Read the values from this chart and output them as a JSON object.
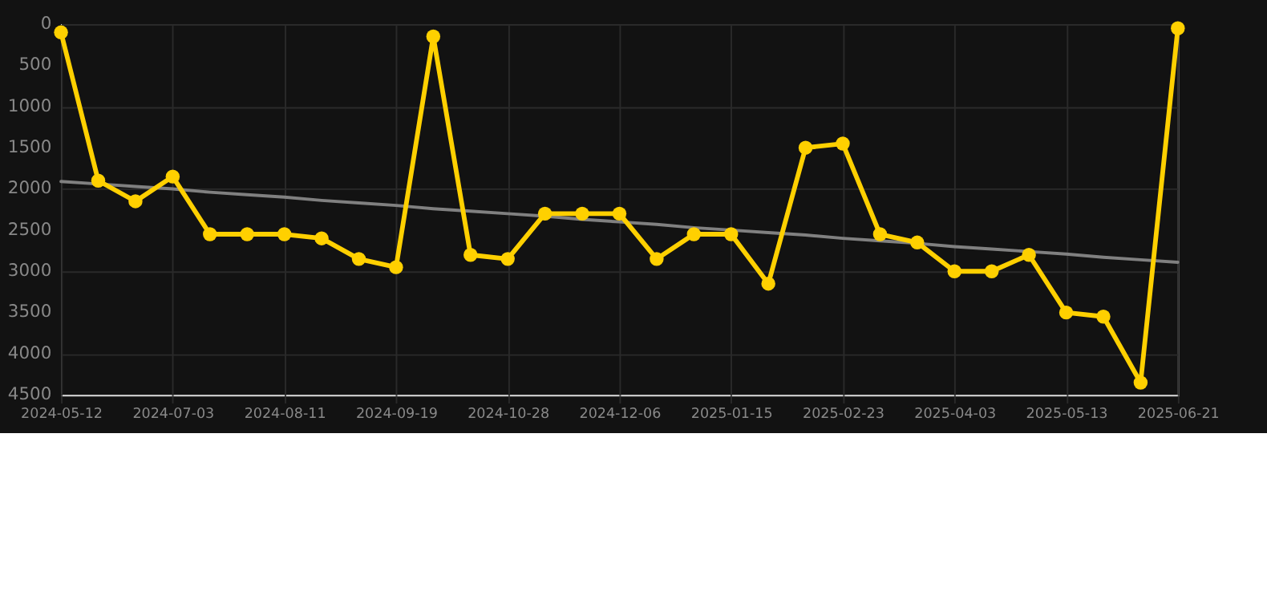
{
  "chart_data": {
    "type": "line",
    "categories": [
      "2024-05-12",
      null,
      null,
      "2024-07-03",
      null,
      null,
      "2024-08-11",
      null,
      null,
      "2024-09-19",
      null,
      null,
      "2024-10-28",
      null,
      null,
      "2024-12-06",
      null,
      null,
      "2025-01-15",
      null,
      null,
      "2025-02-23",
      null,
      null,
      "2025-04-03",
      null,
      null,
      "2025-05-13",
      null,
      null,
      "2025-06-21"
    ],
    "series": [
      {
        "color": "#ffd000",
        "marker": "circle",
        "values": [
          100,
          1900,
          2150,
          1850,
          2550,
          2550,
          2550,
          2600,
          2850,
          2950,
          150,
          2800,
          2850,
          2300,
          2300,
          2300,
          2850,
          2550,
          2550,
          3150,
          1500,
          1450,
          2550,
          2650,
          3000,
          3000,
          2800,
          3500,
          3550,
          4350,
          50
        ]
      },
      {
        "type": "line",
        "color": "#808080",
        "marker": "none",
        "values": [
          1910,
          1940,
          1970,
          2000,
          2040,
          2070,
          2100,
          2140,
          2170,
          2200,
          2240,
          2270,
          2300,
          2330,
          2370,
          2400,
          2430,
          2470,
          2500,
          2530,
          2560,
          2600,
          2630,
          2660,
          2700,
          2730,
          2760,
          2790,
          2830,
          2860,
          2890
        ]
      }
    ],
    "ylim": [
      4500,
      0
    ],
    "yticks": [
      0,
      500,
      1000,
      1500,
      2000,
      2500,
      3000,
      3500,
      4000,
      4500
    ],
    "grid": true
  }
}
